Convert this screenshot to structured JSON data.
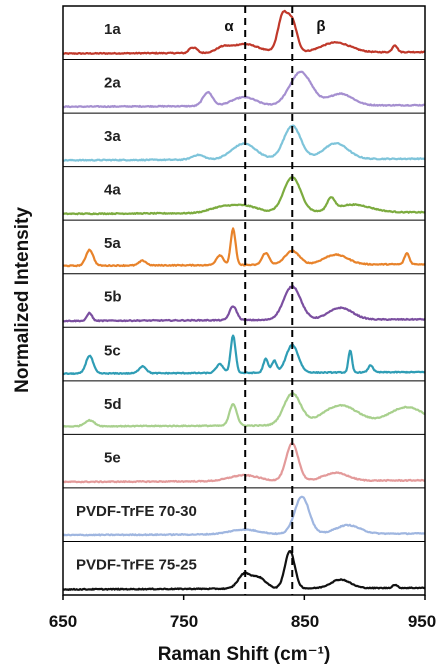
{
  "chart_data": {
    "type": "line",
    "title": "",
    "xlabel": "Raman Shift (cm⁻¹)",
    "ylabel": "Normalized Intensity",
    "xlim": [
      650,
      950
    ],
    "xticks": [
      "650",
      "750",
      "850",
      "950"
    ],
    "grid": false,
    "reference_lines": [
      {
        "label": "α",
        "x": 801
      },
      {
        "label": "β",
        "x": 840
      }
    ],
    "series": [
      {
        "name": "1a",
        "color": "#c0392b",
        "baseline": 0.05,
        "peaks": [
          [
            756,
            0.12,
            2
          ],
          [
            760,
            0.1,
            2
          ],
          [
            782,
            0.1,
            5
          ],
          [
            800,
            0.22,
            12
          ],
          [
            832,
            0.9,
            4
          ],
          [
            840,
            0.75,
            4
          ],
          [
            876,
            0.25,
            12
          ],
          [
            925,
            0.18,
            2
          ]
        ]
      },
      {
        "name": "2a",
        "color": "#a58fd0",
        "baseline": 0.06,
        "peaks": [
          [
            770,
            0.35,
            4
          ],
          [
            800,
            0.22,
            10
          ],
          [
            847,
            0.85,
            9
          ],
          [
            880,
            0.3,
            10
          ]
        ]
      },
      {
        "name": "3a",
        "color": "#7ec4da",
        "baseline": 0.06,
        "peaks": [
          [
            762,
            0.12,
            5
          ],
          [
            800,
            0.4,
            10
          ],
          [
            840,
            0.85,
            7
          ],
          [
            876,
            0.4,
            10
          ]
        ]
      },
      {
        "name": "4a",
        "color": "#7cab3f",
        "baseline": 0.06,
        "peaks": [
          [
            780,
            0.12,
            10
          ],
          [
            800,
            0.18,
            12
          ],
          [
            840,
            0.9,
            7
          ],
          [
            872,
            0.3,
            3
          ],
          [
            890,
            0.2,
            15
          ]
        ]
      },
      {
        "name": "5a",
        "color": "#e8832b",
        "baseline": 0.1,
        "peaks": [
          [
            672,
            0.4,
            3
          ],
          [
            716,
            0.12,
            3
          ],
          [
            780,
            0.25,
            3
          ],
          [
            791,
            0.92,
            2
          ],
          [
            818,
            0.3,
            3
          ],
          [
            840,
            0.35,
            6
          ],
          [
            876,
            0.25,
            10
          ],
          [
            935,
            0.28,
            2
          ]
        ]
      },
      {
        "name": "5b",
        "color": "#7b4fa0",
        "baseline": 0.06,
        "peaks": [
          [
            672,
            0.2,
            2
          ],
          [
            791,
            0.35,
            3
          ],
          [
            840,
            0.85,
            7
          ],
          [
            880,
            0.3,
            10
          ]
        ]
      },
      {
        "name": "5c",
        "color": "#2f9db5",
        "baseline": 0.08,
        "peaks": [
          [
            672,
            0.45,
            3
          ],
          [
            716,
            0.18,
            3
          ],
          [
            780,
            0.22,
            3
          ],
          [
            791,
            0.95,
            2
          ],
          [
            818,
            0.35,
            2
          ],
          [
            825,
            0.3,
            2
          ],
          [
            840,
            0.7,
            5
          ],
          [
            888,
            0.55,
            1.5
          ],
          [
            905,
            0.18,
            2
          ]
        ]
      },
      {
        "name": "5d",
        "color": "#a8d08d",
        "baseline": 0.1,
        "peaks": [
          [
            672,
            0.15,
            4
          ],
          [
            791,
            0.55,
            3
          ],
          [
            840,
            0.8,
            7
          ],
          [
            880,
            0.5,
            15
          ],
          [
            935,
            0.45,
            15
          ]
        ]
      },
      {
        "name": "5e",
        "color": "#e39a9a",
        "baseline": 0.05,
        "peaks": [
          [
            800,
            0.15,
            12
          ],
          [
            840,
            0.95,
            5
          ],
          [
            876,
            0.2,
            10
          ]
        ]
      },
      {
        "name": "PVDF-TrFE 70-30",
        "color": "#9fb6e0",
        "baseline": 0.06,
        "peaks": [
          [
            800,
            0.12,
            12
          ],
          [
            848,
            0.95,
            6
          ],
          [
            886,
            0.22,
            10
          ]
        ]
      },
      {
        "name": "PVDF-TrFE 75-25",
        "color": "#111111",
        "baseline": 0.04,
        "peaks": [
          [
            800,
            0.35,
            5
          ],
          [
            812,
            0.28,
            6
          ],
          [
            838,
            0.95,
            4
          ],
          [
            880,
            0.22,
            8
          ],
          [
            925,
            0.08,
            2
          ]
        ]
      }
    ]
  }
}
